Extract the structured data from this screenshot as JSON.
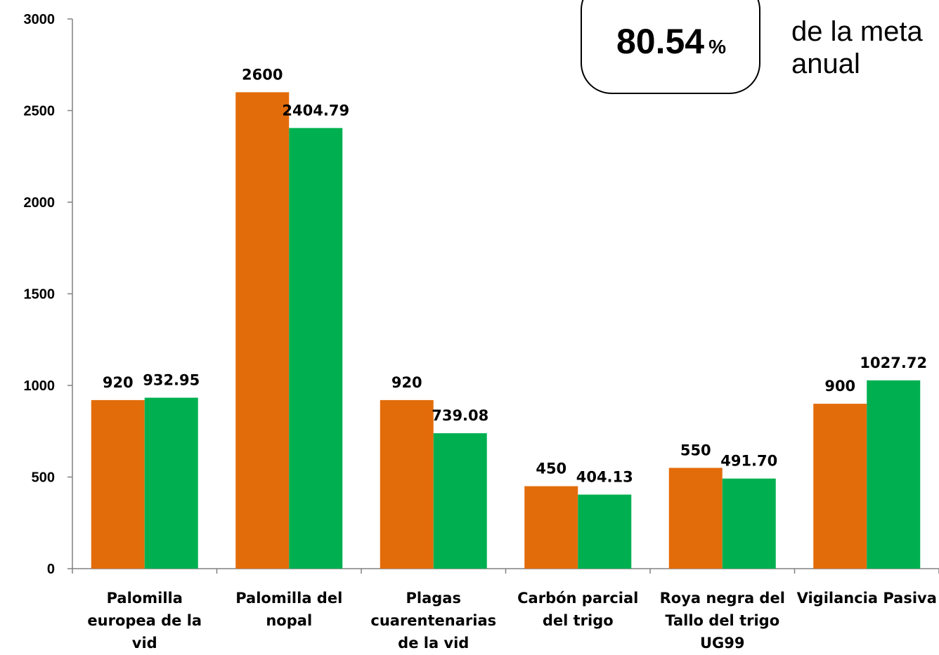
{
  "chart_data": {
    "type": "bar",
    "categories": [
      [
        "Palomilla",
        "europea de la",
        "vid"
      ],
      [
        "Palomilla del",
        "nopal"
      ],
      [
        "Plagas",
        "cuarentenarias",
        "de la vid"
      ],
      [
        "Carbón parcial",
        "del trigo"
      ],
      [
        "Roya negra del",
        "Tallo del trigo",
        "UG99"
      ],
      [
        "Vigilancia Pasiva"
      ]
    ],
    "series": [
      {
        "values": [
          920,
          2600,
          920,
          450,
          550,
          900
        ],
        "labels": [
          "920",
          "2600",
          "920",
          "450",
          "550",
          "900"
        ],
        "color": "#E36C0A"
      },
      {
        "values": [
          932.95,
          2404.79,
          739.08,
          404.13,
          491.7,
          1027.72
        ],
        "labels": [
          "932.95",
          "2404.79",
          "739.08",
          "404.13",
          "491.70",
          "1027.72"
        ],
        "color": "#00B050"
      }
    ],
    "ylim": [
      0,
      3000
    ],
    "yticks": [
      0,
      500,
      1000,
      1500,
      2000,
      2500,
      3000
    ],
    "grid": false,
    "title": "",
    "xlabel": "",
    "ylabel": ""
  },
  "callout": {
    "value": "80.54",
    "unit": "%",
    "text_lines": [
      "de la meta",
      "anual"
    ]
  }
}
